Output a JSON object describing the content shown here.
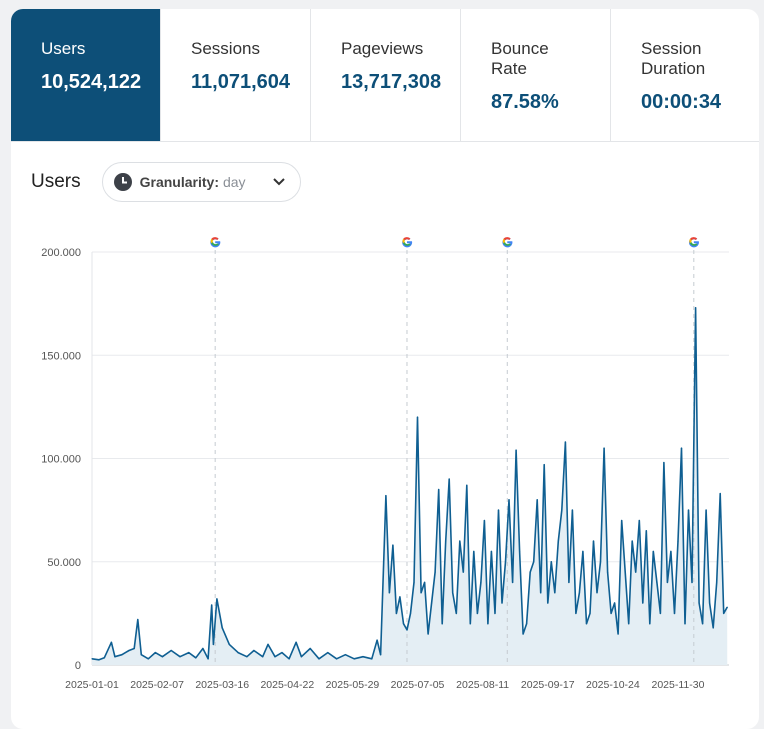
{
  "tabs": [
    {
      "label": "Users",
      "value": "10,524,122",
      "active": true
    },
    {
      "label": "Sessions",
      "value": "11,071,604"
    },
    {
      "label": "Pageviews",
      "value": "13,717,308"
    },
    {
      "label": "Bounce Rate",
      "value": "87.58%"
    },
    {
      "label": "Session Duration",
      "value": "00:00:34"
    }
  ],
  "chart_header": {
    "title": "Users",
    "granularity_label": "Granularity:",
    "granularity_value": "day",
    "clock_icon": "clock-icon",
    "chevron_icon": "chevron-down-icon"
  },
  "colors": {
    "accent": "#0d4f78",
    "line": "#0f5f92",
    "fill": "#e4eef4"
  },
  "chart_data": {
    "type": "area",
    "xlabel": "",
    "ylabel": "",
    "ylim": [
      0,
      200000
    ],
    "xlim": [
      "2025-01-01",
      "2025-12-29"
    ],
    "grid": true,
    "y_ticks": [
      "0",
      "50.000",
      "100.000",
      "150.000",
      "200.000"
    ],
    "y_tick_values": [
      0,
      50000,
      100000,
      150000,
      200000
    ],
    "x_ticks": [
      "2025-01-01",
      "2025-02-07",
      "2025-03-16",
      "2025-04-22",
      "2025-05-29",
      "2025-07-05",
      "2025-08-11",
      "2025-09-17",
      "2025-10-24",
      "2025-11-30"
    ],
    "annotations": [
      {
        "x": "2025-03-12",
        "icon": "google-icon"
      },
      {
        "x": "2025-06-29",
        "icon": "google-icon"
      },
      {
        "x": "2025-08-25",
        "icon": "google-icon"
      },
      {
        "x": "2025-12-09",
        "icon": "google-icon"
      }
    ],
    "points": [
      [
        "2025-01-01",
        3000
      ],
      [
        "2025-01-05",
        2500
      ],
      [
        "2025-01-08",
        3500
      ],
      [
        "2025-01-12",
        11000
      ],
      [
        "2025-01-14",
        4000
      ],
      [
        "2025-01-18",
        5000
      ],
      [
        "2025-01-22",
        7000
      ],
      [
        "2025-01-25",
        8000
      ],
      [
        "2025-01-27",
        22000
      ],
      [
        "2025-01-29",
        5000
      ],
      [
        "2025-02-02",
        3000
      ],
      [
        "2025-02-06",
        6000
      ],
      [
        "2025-02-10",
        4000
      ],
      [
        "2025-02-15",
        7000
      ],
      [
        "2025-02-20",
        4000
      ],
      [
        "2025-02-25",
        6000
      ],
      [
        "2025-03-01",
        3500
      ],
      [
        "2025-03-05",
        8000
      ],
      [
        "2025-03-08",
        3000
      ],
      [
        "2025-03-10",
        29000
      ],
      [
        "2025-03-11",
        10000
      ],
      [
        "2025-03-13",
        32000
      ],
      [
        "2025-03-16",
        18000
      ],
      [
        "2025-03-20",
        10000
      ],
      [
        "2025-03-25",
        6000
      ],
      [
        "2025-03-30",
        4000
      ],
      [
        "2025-04-03",
        7000
      ],
      [
        "2025-04-08",
        4000
      ],
      [
        "2025-04-11",
        10000
      ],
      [
        "2025-04-15",
        4000
      ],
      [
        "2025-04-19",
        6000
      ],
      [
        "2025-04-23",
        3000
      ],
      [
        "2025-04-27",
        11000
      ],
      [
        "2025-04-30",
        4000
      ],
      [
        "2025-05-05",
        8000
      ],
      [
        "2025-05-10",
        3000
      ],
      [
        "2025-05-15",
        6000
      ],
      [
        "2025-05-20",
        3000
      ],
      [
        "2025-05-25",
        5000
      ],
      [
        "2025-05-30",
        3000
      ],
      [
        "2025-06-04",
        4000
      ],
      [
        "2025-06-09",
        3000
      ],
      [
        "2025-06-12",
        12000
      ],
      [
        "2025-06-14",
        5000
      ],
      [
        "2025-06-17",
        82000
      ],
      [
        "2025-06-19",
        35000
      ],
      [
        "2025-06-21",
        58000
      ],
      [
        "2025-06-23",
        25000
      ],
      [
        "2025-06-25",
        33000
      ],
      [
        "2025-06-27",
        20000
      ],
      [
        "2025-06-29",
        17000
      ],
      [
        "2025-07-01",
        25000
      ],
      [
        "2025-07-03",
        40000
      ],
      [
        "2025-07-05",
        120000
      ],
      [
        "2025-07-07",
        35000
      ],
      [
        "2025-07-09",
        40000
      ],
      [
        "2025-07-11",
        15000
      ],
      [
        "2025-07-13",
        30000
      ],
      [
        "2025-07-15",
        45000
      ],
      [
        "2025-07-17",
        85000
      ],
      [
        "2025-07-19",
        20000
      ],
      [
        "2025-07-21",
        60000
      ],
      [
        "2025-07-23",
        90000
      ],
      [
        "2025-07-25",
        35000
      ],
      [
        "2025-07-27",
        25000
      ],
      [
        "2025-07-29",
        60000
      ],
      [
        "2025-07-31",
        45000
      ],
      [
        "2025-08-02",
        87000
      ],
      [
        "2025-08-04",
        20000
      ],
      [
        "2025-08-06",
        55000
      ],
      [
        "2025-08-08",
        25000
      ],
      [
        "2025-08-10",
        40000
      ],
      [
        "2025-08-12",
        70000
      ],
      [
        "2025-08-14",
        20000
      ],
      [
        "2025-08-16",
        55000
      ],
      [
        "2025-08-18",
        25000
      ],
      [
        "2025-08-20",
        75000
      ],
      [
        "2025-08-22",
        30000
      ],
      [
        "2025-08-24",
        50000
      ],
      [
        "2025-08-26",
        80000
      ],
      [
        "2025-08-28",
        40000
      ],
      [
        "2025-08-30",
        104000
      ],
      [
        "2025-09-01",
        55000
      ],
      [
        "2025-09-03",
        15000
      ],
      [
        "2025-09-05",
        20000
      ],
      [
        "2025-09-07",
        45000
      ],
      [
        "2025-09-09",
        50000
      ],
      [
        "2025-09-11",
        80000
      ],
      [
        "2025-09-13",
        35000
      ],
      [
        "2025-09-15",
        97000
      ],
      [
        "2025-09-17",
        30000
      ],
      [
        "2025-09-19",
        50000
      ],
      [
        "2025-09-21",
        35000
      ],
      [
        "2025-09-23",
        60000
      ],
      [
        "2025-09-25",
        75000
      ],
      [
        "2025-09-27",
        108000
      ],
      [
        "2025-09-29",
        40000
      ],
      [
        "2025-10-01",
        75000
      ],
      [
        "2025-10-03",
        25000
      ],
      [
        "2025-10-05",
        35000
      ],
      [
        "2025-10-07",
        55000
      ],
      [
        "2025-10-09",
        20000
      ],
      [
        "2025-10-11",
        25000
      ],
      [
        "2025-10-13",
        60000
      ],
      [
        "2025-10-15",
        35000
      ],
      [
        "2025-10-17",
        50000
      ],
      [
        "2025-10-19",
        105000
      ],
      [
        "2025-10-21",
        45000
      ],
      [
        "2025-10-23",
        25000
      ],
      [
        "2025-10-25",
        30000
      ],
      [
        "2025-10-27",
        15000
      ],
      [
        "2025-10-29",
        70000
      ],
      [
        "2025-10-31",
        45000
      ],
      [
        "2025-11-02",
        20000
      ],
      [
        "2025-11-04",
        60000
      ],
      [
        "2025-11-06",
        45000
      ],
      [
        "2025-11-08",
        70000
      ],
      [
        "2025-11-10",
        30000
      ],
      [
        "2025-11-12",
        65000
      ],
      [
        "2025-11-14",
        20000
      ],
      [
        "2025-11-16",
        55000
      ],
      [
        "2025-11-18",
        40000
      ],
      [
        "2025-11-20",
        25000
      ],
      [
        "2025-11-22",
        98000
      ],
      [
        "2025-11-24",
        40000
      ],
      [
        "2025-11-26",
        55000
      ],
      [
        "2025-11-28",
        25000
      ],
      [
        "2025-11-30",
        60000
      ],
      [
        "2025-12-02",
        105000
      ],
      [
        "2025-12-04",
        20000
      ],
      [
        "2025-12-06",
        75000
      ],
      [
        "2025-12-08",
        40000
      ],
      [
        "2025-12-10",
        173000
      ],
      [
        "2025-12-12",
        30000
      ],
      [
        "2025-12-14",
        20000
      ],
      [
        "2025-12-16",
        75000
      ],
      [
        "2025-12-18",
        30000
      ],
      [
        "2025-12-20",
        18000
      ],
      [
        "2025-12-22",
        40000
      ],
      [
        "2025-12-24",
        83000
      ],
      [
        "2025-12-26",
        25000
      ],
      [
        "2025-12-28",
        28000
      ]
    ]
  }
}
